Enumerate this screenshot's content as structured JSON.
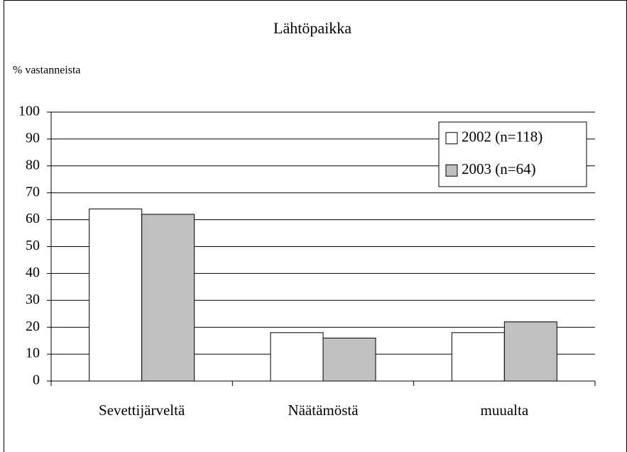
{
  "chart_data": {
    "type": "bar",
    "title": "Lähtöpaikka",
    "y_label": "% vastanneista",
    "categories": [
      "Sevettijärveltä",
      "Näätämöstä",
      "muualta"
    ],
    "series": [
      {
        "name": "2002 (n=118)",
        "color": "#ffffff",
        "values": [
          64,
          18,
          18
        ]
      },
      {
        "name": "2003 (n=64)",
        "color": "#c0c0c0",
        "values": [
          62,
          16,
          22
        ]
      }
    ],
    "ylim": [
      0,
      100
    ],
    "yticks": [
      0,
      10,
      20,
      30,
      40,
      50,
      60,
      70,
      80,
      90,
      100
    ],
    "grid": true,
    "legend": "upper right"
  }
}
